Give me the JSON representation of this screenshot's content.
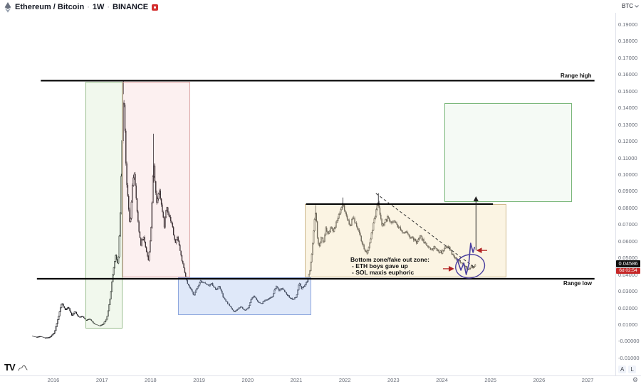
{
  "toolbar": {
    "symbol": "Ethereum / Bitcoin",
    "separator": "·",
    "interval": "1W",
    "exchange": "BINANCE",
    "unit": "BTC"
  },
  "price_label": {
    "price": "0.04586",
    "countdown": "6d 02:54"
  },
  "annotations": {
    "range_high": "Range high",
    "range_low": "Range low",
    "zone_title": "Bottom zone/fake out zone:",
    "zone_line1": "- ETH boys gave up",
    "zone_line2": "- SOL maxis euphoric"
  },
  "scale_controls": {
    "auto": "A",
    "log": "L"
  },
  "icons": {
    "gear": "⚙"
  },
  "axes": {
    "price_ticks": [
      "0.19000",
      "0.18000",
      "0.17000",
      "0.16000",
      "0.15000",
      "0.14000",
      "0.13000",
      "0.12000",
      "0.11000",
      "0.10000",
      "0.09000",
      "0.08000",
      "0.07000",
      "0.06000",
      "0.05000",
      "0.04000",
      "0.03000",
      "0.02000",
      "0.01000",
      "-0.00000",
      "-0.01000"
    ],
    "price_tick_values": [
      0.19,
      0.18,
      0.17,
      0.16,
      0.15,
      0.14,
      0.13,
      0.12,
      0.11,
      0.1,
      0.09,
      0.08,
      0.07,
      0.06,
      0.05,
      0.04,
      0.03,
      0.02,
      0.01,
      0.0,
      -0.01
    ],
    "year_ticks": [
      "2016",
      "2017",
      "2018",
      "2019",
      "2020",
      "2021",
      "2022",
      "2023",
      "2024",
      "2025",
      "2026",
      "2027"
    ],
    "year_tick_values": [
      2016,
      2017,
      2018,
      2019,
      2020,
      2021,
      2022,
      2023,
      2024,
      2025,
      2026,
      2027
    ]
  },
  "chart_data": {
    "type": "candlestick",
    "symbol": "ETHBTC",
    "timeframe": "1W",
    "title": "Ethereum / Bitcoin · 1W · BINANCE",
    "x_axis_years": [
      2014.9,
      2027.57
    ],
    "y_axis_price": [
      0.1968,
      -0.0207
    ],
    "last_price": 0.04586,
    "anchors": [
      [
        2015.55,
        0.003
      ],
      [
        2015.65,
        0.0023
      ],
      [
        2015.73,
        0.0028
      ],
      [
        2015.82,
        0.0019
      ],
      [
        2015.92,
        0.0021
      ],
      [
        2016.02,
        0.005
      ],
      [
        2016.1,
        0.014
      ],
      [
        2016.17,
        0.023
      ],
      [
        2016.24,
        0.0185
      ],
      [
        2016.31,
        0.0205
      ],
      [
        2016.38,
        0.015
      ],
      [
        2016.44,
        0.018
      ],
      [
        2016.52,
        0.014
      ],
      [
        2016.6,
        0.015
      ],
      [
        2016.67,
        0.0122
      ],
      [
        2016.75,
        0.0132
      ],
      [
        2016.84,
        0.0102
      ],
      [
        2016.94,
        0.009
      ],
      [
        2017.02,
        0.01
      ],
      [
        2017.1,
        0.0135
      ],
      [
        2017.17,
        0.026
      ],
      [
        2017.23,
        0.042
      ],
      [
        2017.28,
        0.051
      ],
      [
        2017.33,
        0.046
      ],
      [
        2017.37,
        0.07
      ],
      [
        2017.41,
        0.115
      ],
      [
        2017.44,
        0.15
      ],
      [
        2017.47,
        0.128
      ],
      [
        2017.5,
        0.098
      ],
      [
        2017.54,
        0.082
      ],
      [
        2017.58,
        0.068
      ],
      [
        2017.62,
        0.09
      ],
      [
        2017.66,
        0.103
      ],
      [
        2017.7,
        0.086
      ],
      [
        2017.75,
        0.068
      ],
      [
        2017.8,
        0.058
      ],
      [
        2017.85,
        0.063
      ],
      [
        2017.9,
        0.056
      ],
      [
        2017.96,
        0.0475
      ],
      [
        2018.02,
        0.072
      ],
      [
        2018.06,
        0.108
      ],
      [
        2018.09,
        0.096
      ],
      [
        2018.13,
        0.082
      ],
      [
        2018.18,
        0.092
      ],
      [
        2018.23,
        0.08
      ],
      [
        2018.28,
        0.069
      ],
      [
        2018.33,
        0.081
      ],
      [
        2018.38,
        0.0755
      ],
      [
        2018.44,
        0.0705
      ],
      [
        2018.5,
        0.0585
      ],
      [
        2018.56,
        0.0625
      ],
      [
        2018.62,
        0.052
      ],
      [
        2018.69,
        0.0425
      ],
      [
        2018.76,
        0.034
      ],
      [
        2018.83,
        0.0308
      ],
      [
        2018.89,
        0.0275
      ],
      [
        2018.96,
        0.0318
      ],
      [
        2019.03,
        0.0362
      ],
      [
        2019.11,
        0.0348
      ],
      [
        2019.19,
        0.033
      ],
      [
        2019.26,
        0.0344
      ],
      [
        2019.34,
        0.0308
      ],
      [
        2019.42,
        0.0328
      ],
      [
        2019.5,
        0.0258
      ],
      [
        2019.58,
        0.0228
      ],
      [
        2019.65,
        0.0204
      ],
      [
        2019.72,
        0.0172
      ],
      [
        2019.79,
        0.019
      ],
      [
        2019.86,
        0.0208
      ],
      [
        2019.93,
        0.0184
      ],
      [
        2020.01,
        0.0196
      ],
      [
        2020.08,
        0.0256
      ],
      [
        2020.14,
        0.0268
      ],
      [
        2020.21,
        0.0234
      ],
      [
        2020.28,
        0.0224
      ],
      [
        2020.36,
        0.0246
      ],
      [
        2020.43,
        0.0252
      ],
      [
        2020.51,
        0.0266
      ],
      [
        2020.58,
        0.0328
      ],
      [
        2020.64,
        0.0304
      ],
      [
        2020.71,
        0.0316
      ],
      [
        2020.78,
        0.0288
      ],
      [
        2020.86,
        0.0262
      ],
      [
        2020.93,
        0.025
      ],
      [
        2021.0,
        0.0262
      ],
      [
        2021.06,
        0.0348
      ],
      [
        2021.11,
        0.0308
      ],
      [
        2021.17,
        0.033
      ],
      [
        2021.23,
        0.0364
      ],
      [
        2021.28,
        0.0425
      ],
      [
        2021.33,
        0.0555
      ],
      [
        2021.37,
        0.0705
      ],
      [
        2021.4,
        0.0775
      ],
      [
        2021.44,
        0.0598
      ],
      [
        2021.48,
        0.0558
      ],
      [
        2021.52,
        0.0638
      ],
      [
        2021.56,
        0.0588
      ],
      [
        2021.61,
        0.0678
      ],
      [
        2021.66,
        0.0638
      ],
      [
        2021.71,
        0.0688
      ],
      [
        2021.76,
        0.0648
      ],
      [
        2021.81,
        0.07
      ],
      [
        2021.86,
        0.0742
      ],
      [
        2021.91,
        0.0788
      ],
      [
        2021.96,
        0.0828
      ],
      [
        2022.01,
        0.0768
      ],
      [
        2022.06,
        0.0728
      ],
      [
        2022.11,
        0.0688
      ],
      [
        2022.16,
        0.0738
      ],
      [
        2022.21,
        0.0718
      ],
      [
        2022.26,
        0.0678
      ],
      [
        2022.31,
        0.0638
      ],
      [
        2022.36,
        0.0578
      ],
      [
        2022.41,
        0.0545
      ],
      [
        2022.46,
        0.0518
      ],
      [
        2022.51,
        0.0588
      ],
      [
        2022.56,
        0.0658
      ],
      [
        2022.61,
        0.0728
      ],
      [
        2022.66,
        0.0798
      ],
      [
        2022.69,
        0.0842
      ],
      [
        2022.73,
        0.0738
      ],
      [
        2022.77,
        0.069
      ],
      [
        2022.83,
        0.0718
      ],
      [
        2022.89,
        0.0742
      ],
      [
        2022.95,
        0.0708
      ],
      [
        2023.01,
        0.0724
      ],
      [
        2023.07,
        0.0698
      ],
      [
        2023.13,
        0.0678
      ],
      [
        2023.19,
        0.0645
      ],
      [
        2023.26,
        0.0662
      ],
      [
        2023.33,
        0.0628
      ],
      [
        2023.41,
        0.061
      ],
      [
        2023.48,
        0.059
      ],
      [
        2023.55,
        0.0628
      ],
      [
        2023.62,
        0.0598
      ],
      [
        2023.7,
        0.0568
      ],
      [
        2023.78,
        0.0548
      ],
      [
        2023.85,
        0.0562
      ],
      [
        2023.93,
        0.0538
      ],
      [
        2024.0,
        0.053
      ],
      [
        2024.06,
        0.0558
      ],
      [
        2024.12,
        0.0572
      ],
      [
        2024.18,
        0.0538
      ],
      [
        2024.25,
        0.05
      ],
      [
        2024.32,
        0.0486
      ],
      [
        2024.4,
        0.0468
      ],
      [
        2024.48,
        0.0446
      ],
      [
        2024.55,
        0.0424
      ],
      [
        2024.6,
        0.0452
      ],
      [
        2024.65,
        0.0436
      ],
      [
        2024.7,
        0.0459
      ]
    ],
    "spikes": [
      [
        2017.44,
        0.148,
        0.156
      ],
      [
        2018.06,
        0.095,
        0.1243
      ],
      [
        2021.4,
        0.076,
        0.0815
      ],
      [
        2021.96,
        0.08,
        0.086
      ],
      [
        2022.69,
        0.081,
        0.0886
      ]
    ],
    "drawings": {
      "range_high": {
        "price": 0.1561,
        "x1": 2015.74,
        "x2": 2027.14
      },
      "range_low": {
        "price": 0.0373,
        "x1": 2015.66,
        "x2": 2027.14
      },
      "zone_top": {
        "price": 0.0821,
        "x1": 2021.2,
        "x2": 2025.05
      },
      "trendline": {
        "x1": 2022.64,
        "p1": 0.0885,
        "x2": 2024.66,
        "p2": 0.0443
      },
      "up_arrow": {
        "x": 2024.7,
        "p1": 0.0545,
        "p2": 0.0862
      },
      "arrow_right": {
        "x1": 2024.02,
        "x2": 2024.23,
        "p": 0.0433
      },
      "arrow_left": {
        "x1": 2024.93,
        "x2": 2024.73,
        "p": 0.0543
      },
      "ellipse": {
        "cx": 2024.58,
        "cp": 0.0448,
        "rx_years": 0.3,
        "rp": 0.007,
        "rotate": -10
      },
      "squiggle": [
        [
          2024.31,
          0.0492
        ],
        [
          2024.39,
          0.0424
        ],
        [
          2024.45,
          0.0467
        ],
        [
          2024.5,
          0.0398
        ],
        [
          2024.55,
          0.0458
        ],
        [
          2024.59,
          0.0586
        ],
        [
          2024.64,
          0.0531
        ],
        [
          2024.67,
          0.0561
        ]
      ],
      "boxes": [
        {
          "name": "accumulation-2017-box",
          "x1": 2016.66,
          "x2": 2017.42,
          "p1": 0.1554,
          "p2": 0.0074,
          "fill": "rgba(178,215,155,0.18)",
          "border": "#9bbf8f"
        },
        {
          "name": "distribution-2018-box",
          "x1": 2017.42,
          "x2": 2018.82,
          "p1": 0.1554,
          "p2": 0.0382,
          "fill": "rgba(239,170,170,0.18)",
          "border": "#d9a0a0"
        },
        {
          "name": "bottom-2019-2021-box",
          "x1": 2018.57,
          "x2": 2021.31,
          "p1": 0.0382,
          "p2": 0.0156,
          "fill": "rgba(164,189,237,0.35)",
          "border": "#8fa8de"
        },
        {
          "name": "range-2021-2025-box",
          "x1": 2021.17,
          "x2": 2025.32,
          "p1": 0.0821,
          "p2": 0.0382,
          "fill": "rgba(244,227,186,0.40)",
          "border": "#cdb990"
        },
        {
          "name": "target-zone-box",
          "x1": 2024.05,
          "x2": 2026.67,
          "p1": 0.1426,
          "p2": 0.0834,
          "fill": "rgba(225,242,225,0.35)",
          "border": "#7cb87c"
        }
      ]
    },
    "colors": {
      "candle": "#15151a",
      "candle_up_fill": "#ffffff",
      "squiggle": "#4a3f9f",
      "accent_arrow": "#b22222",
      "trendline": "#333333",
      "range_line": "#000000"
    }
  }
}
